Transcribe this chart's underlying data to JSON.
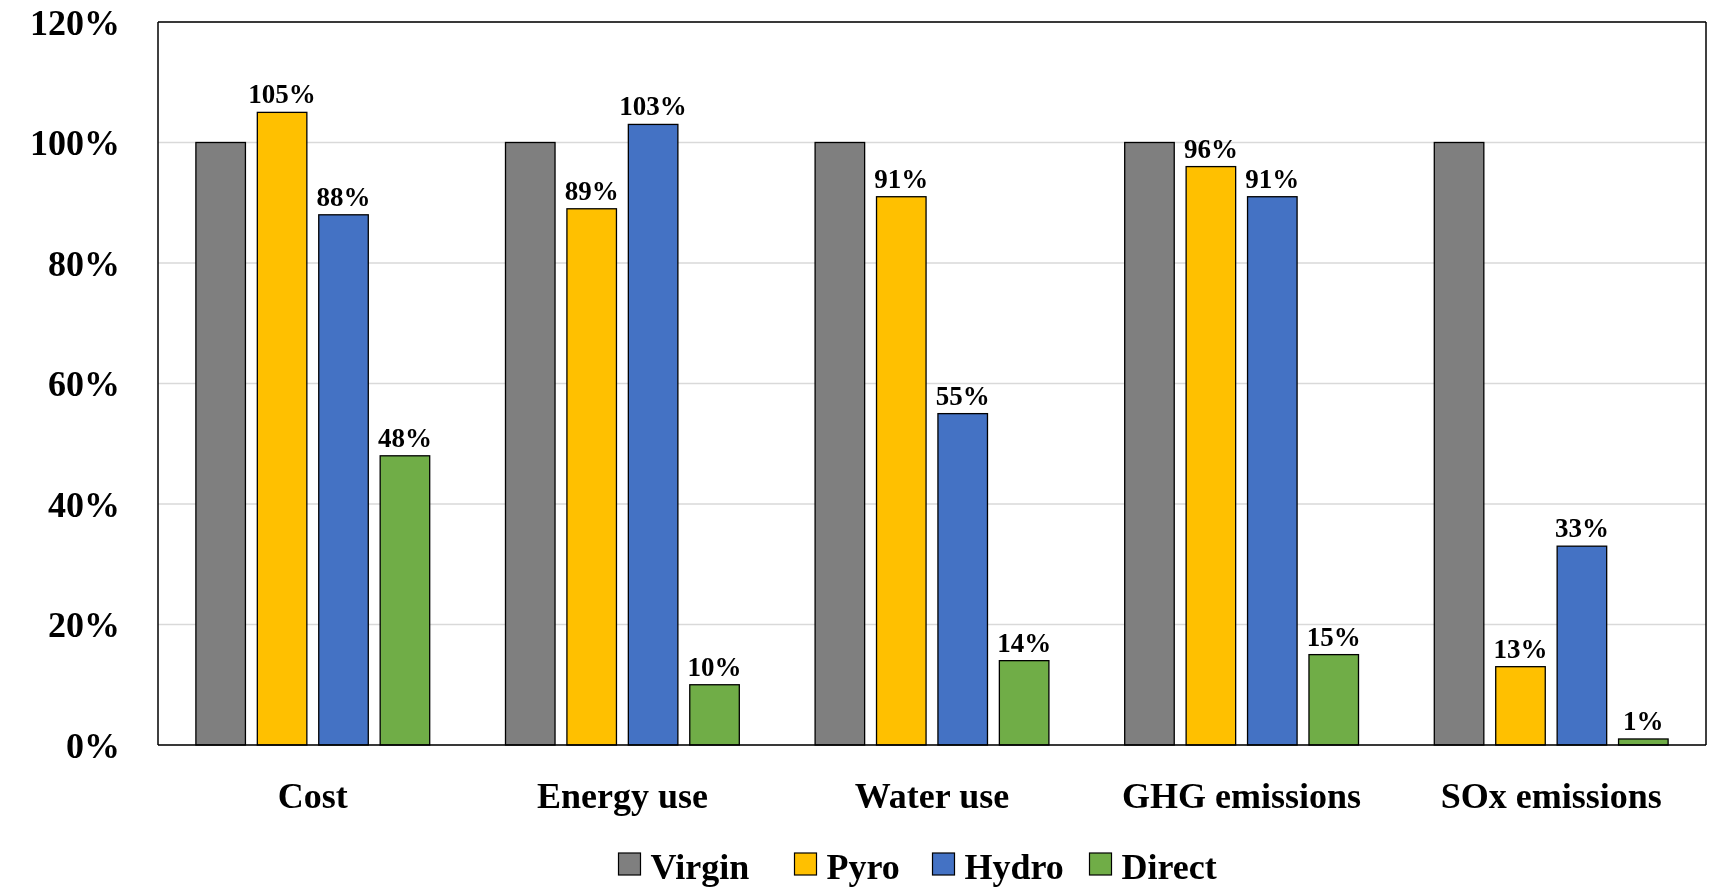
{
  "chart_data": {
    "type": "bar",
    "categories": [
      "Cost",
      "Energy use",
      "Water use",
      "GHG emissions",
      "SOx emissions"
    ],
    "series": [
      {
        "name": "Virgin",
        "color": "#7f7f7f",
        "values": [
          100,
          100,
          100,
          100,
          100
        ]
      },
      {
        "name": "Pyro",
        "color": "#ffc000",
        "values": [
          105,
          89,
          91,
          96,
          13
        ],
        "value_labels": [
          "105%",
          "89%",
          "91%",
          "96%",
          "13%"
        ]
      },
      {
        "name": "Hydro",
        "color": "#4472c4",
        "values": [
          88,
          103,
          55,
          91,
          33
        ],
        "value_labels": [
          "88%",
          "103%",
          "55%",
          "91%",
          "33%"
        ]
      },
      {
        "name": "Direct",
        "color": "#70ad47",
        "values": [
          48,
          10,
          14,
          15,
          1
        ],
        "value_labels": [
          "48%",
          "10%",
          "14%",
          "15%",
          "1%"
        ]
      }
    ],
    "ylim": [
      0,
      120
    ],
    "yticks": [
      {
        "value": 0,
        "label": "0%"
      },
      {
        "value": 20,
        "label": "20%"
      },
      {
        "value": 40,
        "label": "40%"
      },
      {
        "value": 60,
        "label": "60%"
      },
      {
        "value": 80,
        "label": "80%"
      },
      {
        "value": 100,
        "label": "100%"
      },
      {
        "value": 120,
        "label": "120%"
      }
    ],
    "grid": "y",
    "legend": "bottom"
  }
}
